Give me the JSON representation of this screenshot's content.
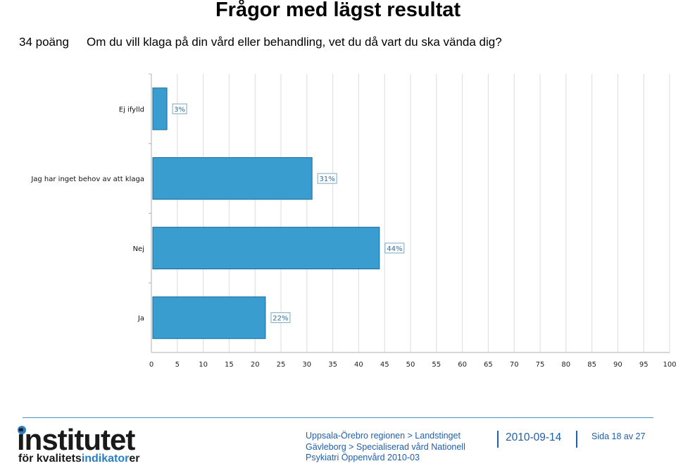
{
  "header": {
    "title": "Frågor med lägst resultat",
    "score": "34 poäng",
    "question": "Om du vill klaga på din vård eller behandling, vet du då vart du ska vända dig?"
  },
  "chart_data": {
    "type": "bar",
    "orientation": "horizontal",
    "categories": [
      "Ej ifylld",
      "Jag har inget behov av att klaga",
      "Nej",
      "Ja"
    ],
    "values": [
      3,
      31,
      44,
      22
    ],
    "value_labels": [
      "3%",
      "31%",
      "44%",
      "22%"
    ],
    "xlim": [
      0,
      100
    ],
    "xticks": [
      "0",
      "5",
      "10",
      "15",
      "20",
      "25",
      "30",
      "35",
      "40",
      "45",
      "50",
      "55",
      "60",
      "65",
      "70",
      "75",
      "80",
      "85",
      "90",
      "95",
      "100"
    ],
    "grid": "vertical",
    "bar_color": "#399ecf",
    "bar_edge_color": "#1b6a9e",
    "label_box_color": "#7aa7c4"
  },
  "footer": {
    "logo_main": "institutet",
    "logo_sub_prefix": "för kvalitets",
    "logo_sub_highlight": "indikator",
    "logo_sub_suffix": "er",
    "org_lines": [
      "Uppsala-Örebro regionen > Landstinget",
      "Gävleborg > Specialiserad vård Nationell",
      "Psykiatri Öppenvård 2010-03"
    ],
    "date": "2010-09-14",
    "page": "Sida 18 av 27",
    "accent": "#1e5fae"
  }
}
